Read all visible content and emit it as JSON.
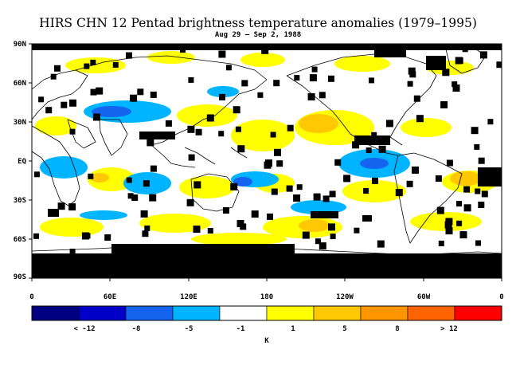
{
  "title": "HIRS CHN 12 Pentad brightness temperature anomalies (1979–1995)",
  "subtitle": "Aug 29 – Sep 2, 1988",
  "map": {
    "lat_labels": [
      "90N",
      "60N",
      "30N",
      "EQ",
      "30S",
      "60S",
      "90S"
    ],
    "lon_labels": [
      "0",
      "60E",
      "120E",
      "180",
      "120W",
      "60W",
      "0"
    ],
    "missing_color": "#000000"
  },
  "colorbar": {
    "unit_label": "K",
    "colors": [
      "#000080",
      "#0000c8",
      "#1464f0",
      "#00b4ff",
      "#ffffff",
      "#ffff00",
      "#ffc800",
      "#ff9600",
      "#ff6400",
      "#ff0000"
    ],
    "labels": [
      "< -12",
      "-8",
      "-5",
      "-1",
      "1",
      "5",
      "8",
      "> 12"
    ]
  }
}
